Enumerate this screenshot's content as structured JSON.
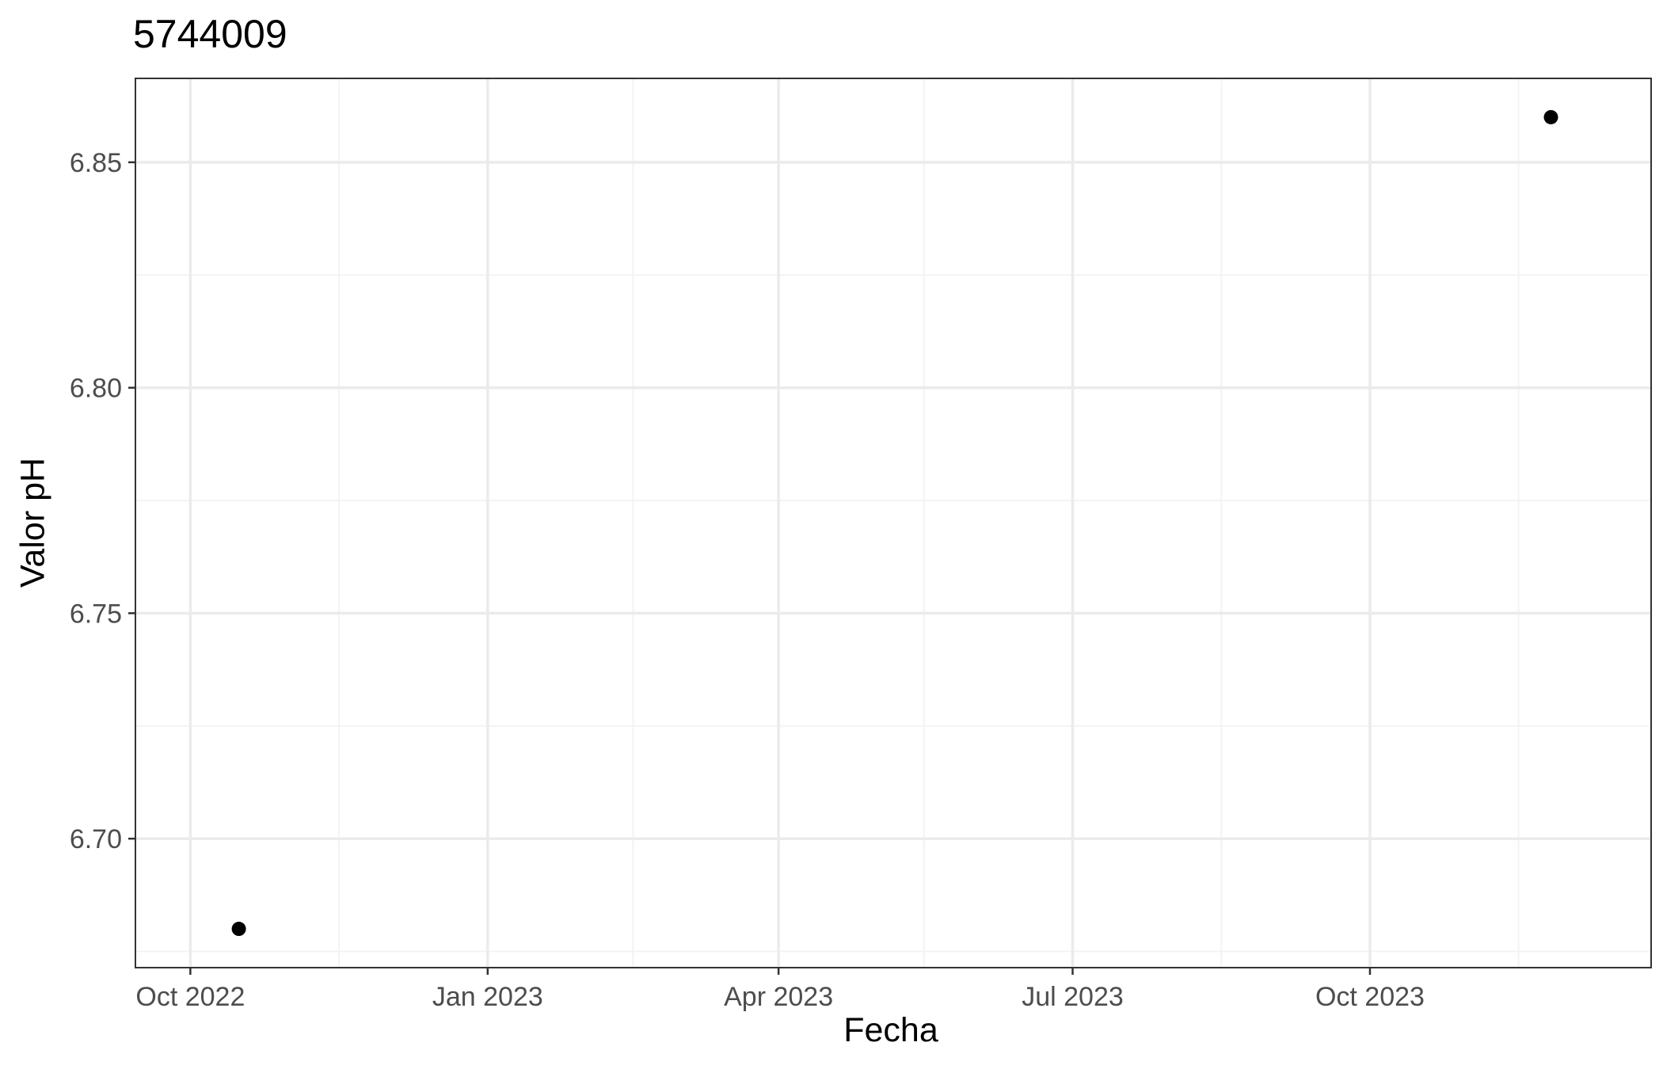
{
  "chart_data": {
    "type": "scatter",
    "title": "5744009",
    "xlabel": "Fecha",
    "ylabel": "Valor pH",
    "x_type": "date",
    "x": [
      "2022-10-16",
      "2023-11-26"
    ],
    "y": [
      6.68,
      6.86
    ],
    "xlim": [
      "2022-09-14",
      "2023-12-27"
    ],
    "ylim": [
      6.6714,
      6.8686
    ],
    "x_ticks": [
      {
        "date": "2022-10-01",
        "label": "Oct 2022"
      },
      {
        "date": "2023-01-01",
        "label": "Jan 2023"
      },
      {
        "date": "2023-04-01",
        "label": "Apr 2023"
      },
      {
        "date": "2023-07-01",
        "label": "Jul 2023"
      },
      {
        "date": "2023-10-01",
        "label": "Oct 2023"
      }
    ],
    "x_minor_ticks": [
      "2022-11-16",
      "2023-02-15",
      "2023-05-16",
      "2023-08-16",
      "2023-11-16"
    ],
    "y_ticks": [
      6.7,
      6.75,
      6.8,
      6.85
    ],
    "y_tick_labels": [
      "6.70",
      "6.75",
      "6.80",
      "6.85"
    ],
    "y_minor_ticks": [
      6.675,
      6.725,
      6.775,
      6.825
    ],
    "grid": true,
    "legend": "none",
    "colors": {
      "point": "#000000",
      "panel_border": "#333333",
      "grid_major": "#ebebeb",
      "grid_minor": "#f3f3f3",
      "tick_label": "#4d4d4d",
      "background": "#ffffff"
    }
  }
}
